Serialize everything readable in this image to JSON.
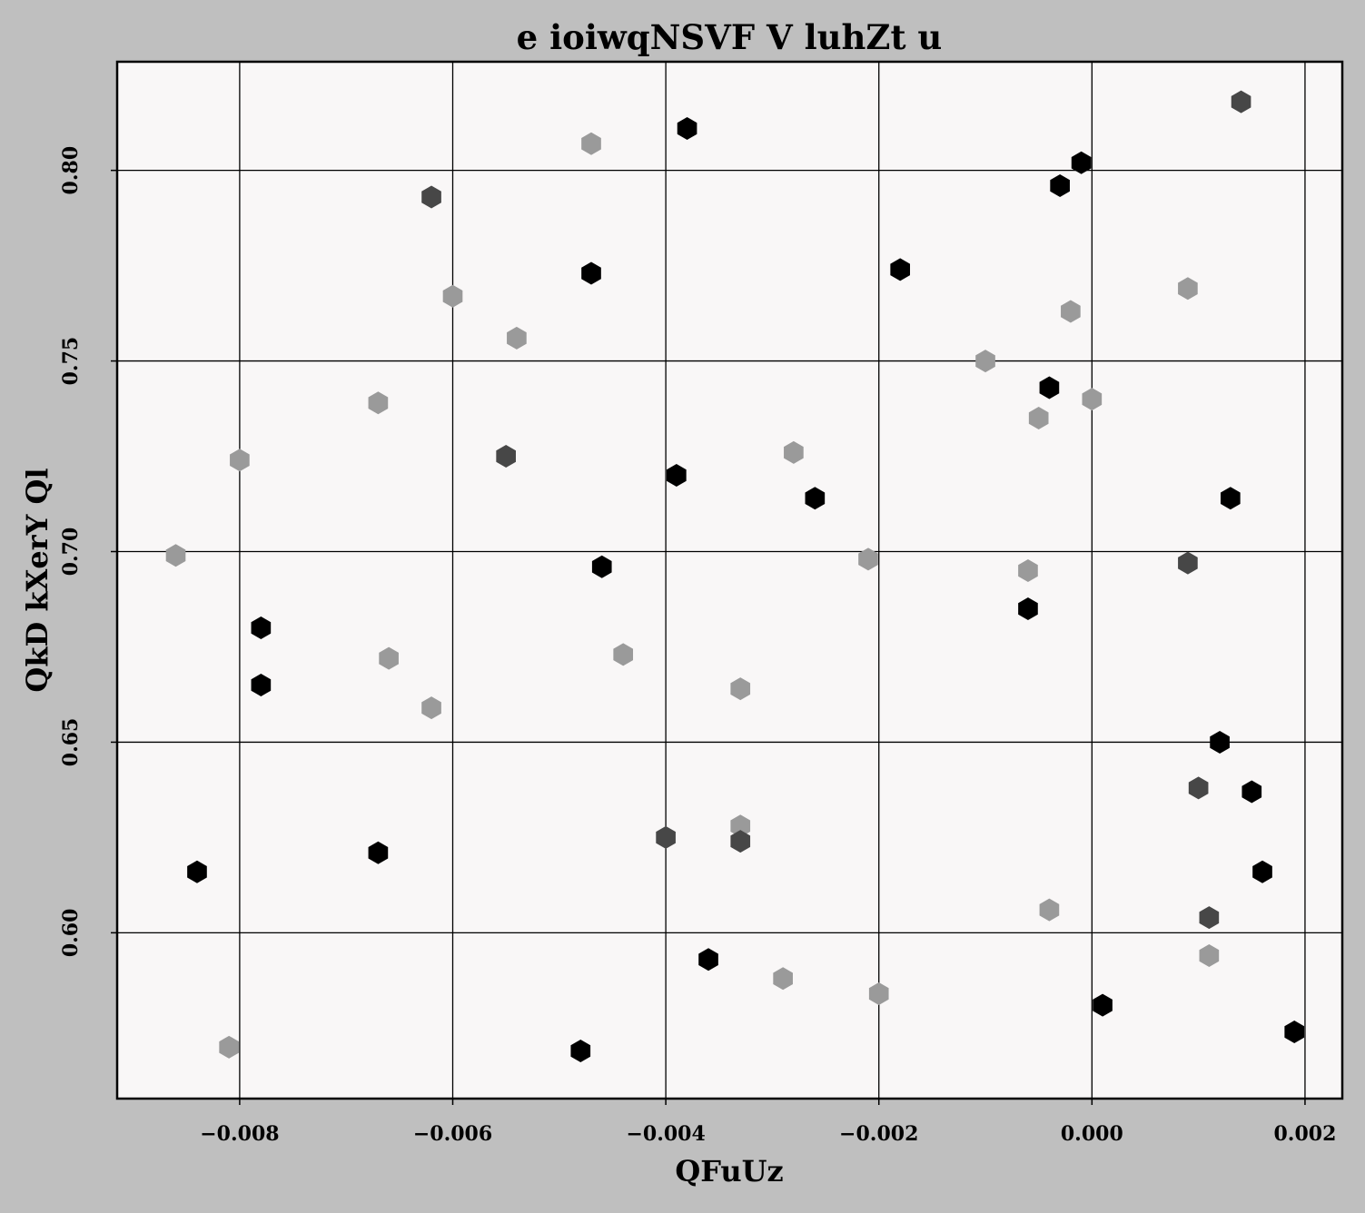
{
  "chart_data": {
    "type": "scatter",
    "title": "e ioiwqNSVF V luhZt u",
    "xlabel": "QFuUz",
    "ylabel": "QkD kXerY Ql",
    "xlim": [
      -0.00915,
      0.00235
    ],
    "ylim": [
      0.5565,
      0.8285
    ],
    "xticks": [
      -0.008,
      -0.006,
      -0.004,
      -0.002,
      0.0,
      0.002
    ],
    "xtick_labels": [
      "−0.008",
      "−0.006",
      "−0.004",
      "−0.002",
      "0.000",
      "0.002"
    ],
    "yticks": [
      0.6,
      0.65,
      0.7,
      0.75,
      0.8
    ],
    "ytick_labels": [
      "0.60",
      "0.65",
      "0.70",
      "0.75",
      "0.80"
    ],
    "grid": true,
    "marker": "hexagon",
    "colors": {
      "figure_background": "#bfbfbf",
      "plot_background": "#f9f7f7",
      "light": "#9a9a9a",
      "dark": "#474747",
      "black": "#000000"
    },
    "points": [
      {
        "x": -0.0086,
        "y": 0.699,
        "shade": "light"
      },
      {
        "x": -0.0081,
        "y": 0.57,
        "shade": "light"
      },
      {
        "x": -0.008,
        "y": 0.724,
        "shade": "light"
      },
      {
        "x": -0.0067,
        "y": 0.739,
        "shade": "light"
      },
      {
        "x": -0.0066,
        "y": 0.672,
        "shade": "light"
      },
      {
        "x": -0.0062,
        "y": 0.659,
        "shade": "light"
      },
      {
        "x": -0.006,
        "y": 0.767,
        "shade": "light"
      },
      {
        "x": -0.0054,
        "y": 0.756,
        "shade": "light"
      },
      {
        "x": -0.0047,
        "y": 0.807,
        "shade": "light"
      },
      {
        "x": -0.0044,
        "y": 0.673,
        "shade": "light"
      },
      {
        "x": -0.0033,
        "y": 0.664,
        "shade": "light"
      },
      {
        "x": -0.0033,
        "y": 0.628,
        "shade": "light"
      },
      {
        "x": -0.0029,
        "y": 0.588,
        "shade": "light"
      },
      {
        "x": -0.0028,
        "y": 0.726,
        "shade": "light"
      },
      {
        "x": -0.0021,
        "y": 0.698,
        "shade": "light"
      },
      {
        "x": -0.002,
        "y": 0.584,
        "shade": "light"
      },
      {
        "x": -0.001,
        "y": 0.75,
        "shade": "light"
      },
      {
        "x": -0.0006,
        "y": 0.695,
        "shade": "light"
      },
      {
        "x": -0.0005,
        "y": 0.735,
        "shade": "light"
      },
      {
        "x": -0.0004,
        "y": 0.606,
        "shade": "light"
      },
      {
        "x": -0.0002,
        "y": 0.763,
        "shade": "light"
      },
      {
        "x": -0.0,
        "y": 0.74,
        "shade": "light"
      },
      {
        "x": 0.0009,
        "y": 0.769,
        "shade": "light"
      },
      {
        "x": 0.0011,
        "y": 0.594,
        "shade": "light"
      },
      {
        "x": -0.0062,
        "y": 0.793,
        "shade": "dark"
      },
      {
        "x": -0.0055,
        "y": 0.725,
        "shade": "dark"
      },
      {
        "x": -0.004,
        "y": 0.625,
        "shade": "dark"
      },
      {
        "x": -0.0033,
        "y": 0.624,
        "shade": "dark"
      },
      {
        "x": 0.0009,
        "y": 0.697,
        "shade": "dark"
      },
      {
        "x": 0.001,
        "y": 0.638,
        "shade": "dark"
      },
      {
        "x": 0.0011,
        "y": 0.604,
        "shade": "dark"
      },
      {
        "x": 0.0014,
        "y": 0.818,
        "shade": "dark"
      },
      {
        "x": -0.0084,
        "y": 0.616,
        "shade": "black"
      },
      {
        "x": -0.0078,
        "y": 0.68,
        "shade": "black"
      },
      {
        "x": -0.0078,
        "y": 0.665,
        "shade": "black"
      },
      {
        "x": -0.0067,
        "y": 0.621,
        "shade": "black"
      },
      {
        "x": -0.0048,
        "y": 0.569,
        "shade": "black"
      },
      {
        "x": -0.0047,
        "y": 0.773,
        "shade": "black"
      },
      {
        "x": -0.0046,
        "y": 0.696,
        "shade": "black"
      },
      {
        "x": -0.0039,
        "y": 0.72,
        "shade": "black"
      },
      {
        "x": -0.0038,
        "y": 0.811,
        "shade": "black"
      },
      {
        "x": -0.0036,
        "y": 0.593,
        "shade": "black"
      },
      {
        "x": -0.0026,
        "y": 0.714,
        "shade": "black"
      },
      {
        "x": -0.0018,
        "y": 0.774,
        "shade": "black"
      },
      {
        "x": -0.0006,
        "y": 0.685,
        "shade": "black"
      },
      {
        "x": -0.0004,
        "y": 0.743,
        "shade": "black"
      },
      {
        "x": -0.0003,
        "y": 0.796,
        "shade": "black"
      },
      {
        "x": -0.0001,
        "y": 0.802,
        "shade": "black"
      },
      {
        "x": 0.0001,
        "y": 0.581,
        "shade": "black"
      },
      {
        "x": 0.0012,
        "y": 0.65,
        "shade": "black"
      },
      {
        "x": 0.0013,
        "y": 0.714,
        "shade": "black"
      },
      {
        "x": 0.0015,
        "y": 0.637,
        "shade": "black"
      },
      {
        "x": 0.0016,
        "y": 0.616,
        "shade": "black"
      },
      {
        "x": 0.0019,
        "y": 0.574,
        "shade": "black"
      }
    ]
  }
}
